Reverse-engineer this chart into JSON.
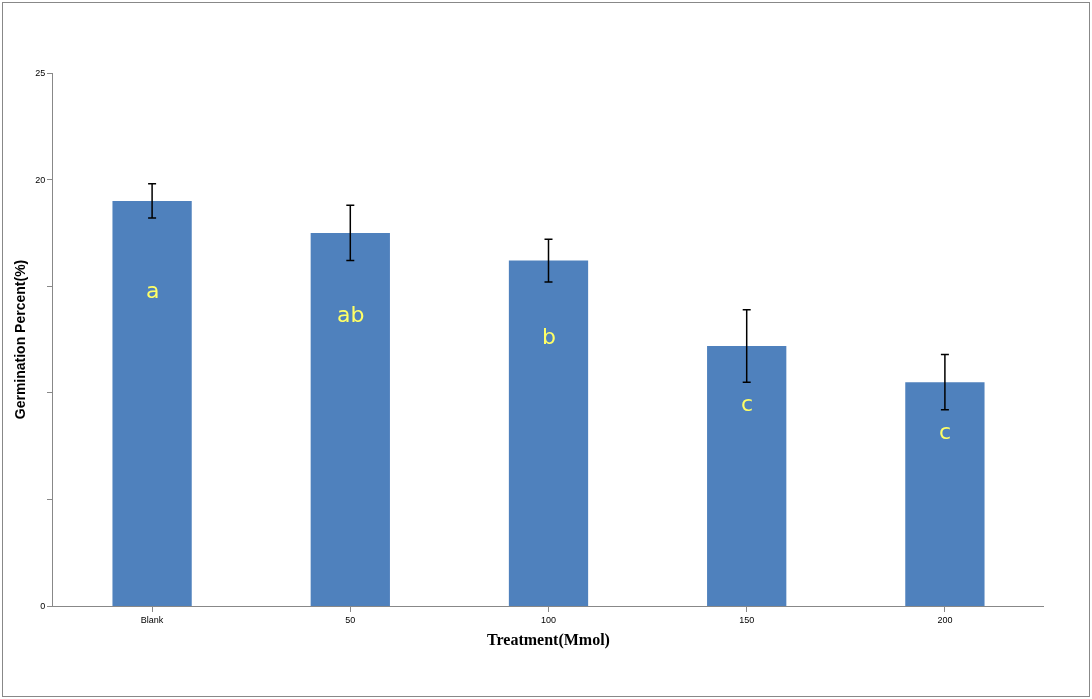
{
  "chart_data": {
    "type": "bar",
    "xlabel": "Treatment(Mmol)",
    "ylabel": "Germination Percent(%)",
    "categories": [
      "Blank",
      "50",
      "100",
      "150",
      "200"
    ],
    "values": [
      19.0,
      17.5,
      16.2,
      12.2,
      10.5
    ],
    "errors": [
      0.8,
      1.3,
      1.0,
      1.7,
      1.3
    ],
    "color": "#4f81bd",
    "ylim": [
      0,
      25
    ],
    "yticks": [
      0,
      {
        "value": 5,
        "label": null
      },
      {
        "value": 10,
        "label": null
      },
      {
        "value": 15,
        "label": null
      },
      20,
      25
    ],
    "annotations": [
      "a",
      "ab",
      "b",
      "c",
      "c"
    ]
  }
}
